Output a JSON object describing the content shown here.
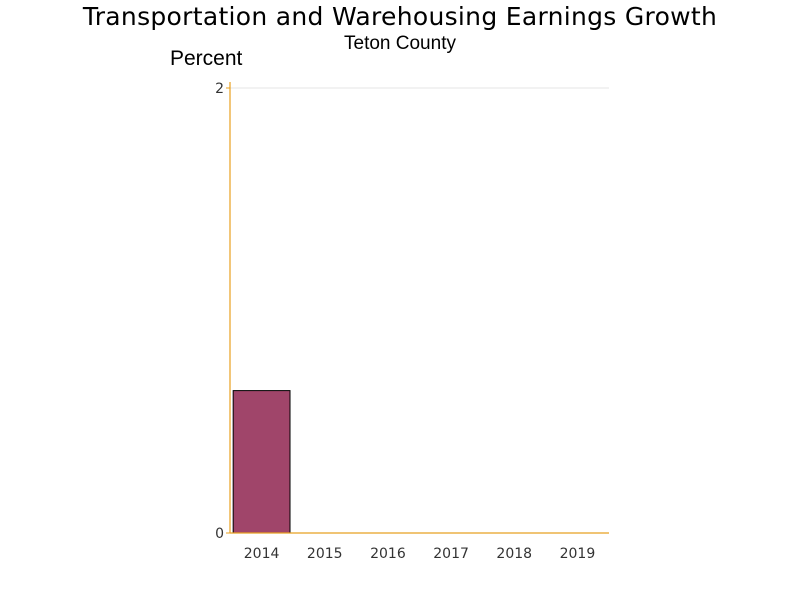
{
  "chart_data": {
    "type": "bar",
    "title": "Transportation and Warehousing Earnings Growth",
    "subtitle": "Teton County",
    "ylabel": "Percent",
    "xlabel": "",
    "categories": [
      "2014",
      "2015",
      "2016",
      "2017",
      "2018",
      "2019"
    ],
    "values": [
      0.64,
      0,
      0,
      0,
      0,
      0
    ],
    "ylim": [
      0,
      2
    ],
    "yticks": [
      0,
      2
    ],
    "grid": true,
    "legend": "none",
    "colors": {
      "bar": "#A0456A",
      "bar_outline": "#000000",
      "axis": "#E8A020",
      "grid": "#E5E5E5"
    }
  }
}
